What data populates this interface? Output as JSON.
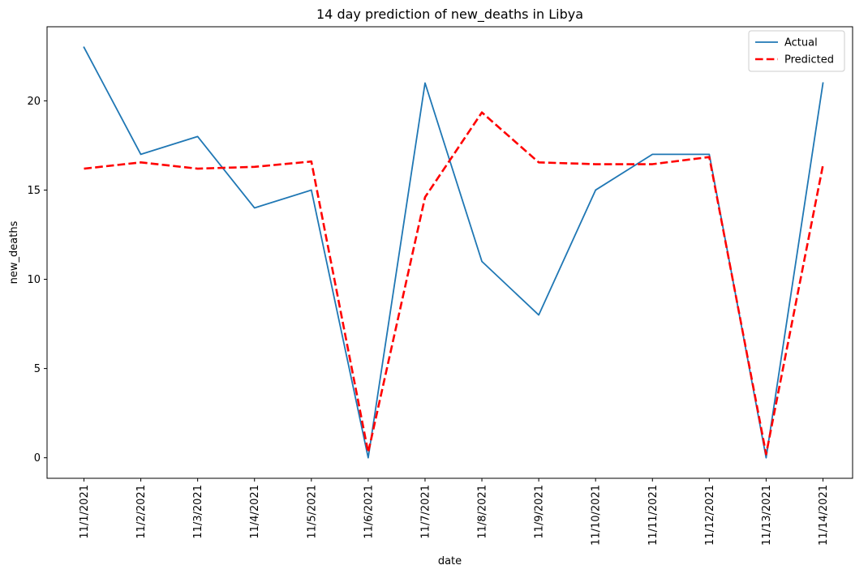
{
  "chart_data": {
    "type": "line",
    "title": "14 day prediction of new_deaths in Libya",
    "xlabel": "date",
    "ylabel": "new_deaths",
    "categories": [
      "11/1/2021",
      "11/2/2021",
      "11/3/2021",
      "11/4/2021",
      "11/5/2021",
      "11/6/2021",
      "11/7/2021",
      "11/8/2021",
      "11/9/2021",
      "11/10/2021",
      "11/11/2021",
      "11/12/2021",
      "11/13/2021",
      "11/14/2021"
    ],
    "series": [
      {
        "name": "Actual",
        "color": "#1f77b4",
        "style": "solid",
        "values": [
          23,
          17,
          18,
          14,
          15,
          0,
          21,
          11,
          8,
          15,
          17,
          17,
          0,
          21
        ]
      },
      {
        "name": "Predicted",
        "color": "#ff0000",
        "style": "dashed",
        "values": [
          16.2,
          16.55,
          16.2,
          16.3,
          16.6,
          0.3,
          14.6,
          19.35,
          16.55,
          16.45,
          16.45,
          16.85,
          0.2,
          16.4
        ]
      }
    ],
    "yticks": [
      0,
      5,
      10,
      15,
      20
    ],
    "ylim": [
      -1.15,
      24.15
    ],
    "grid": false,
    "legend_position": "top-right"
  }
}
